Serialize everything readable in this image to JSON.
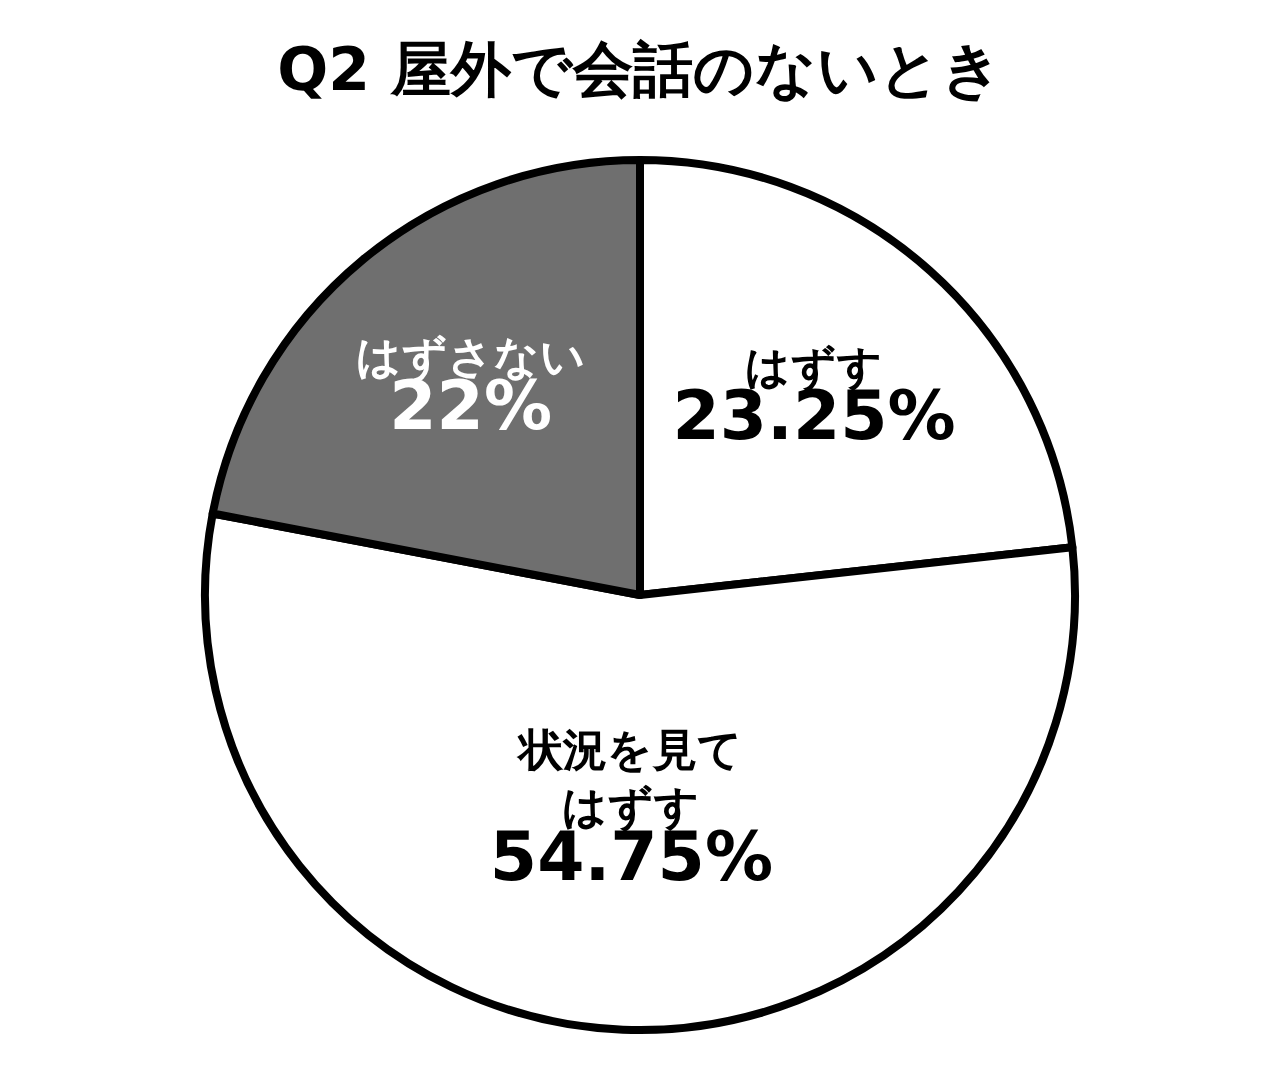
{
  "chart_data": {
    "type": "pie",
    "title": "Q2 屋外で会話のないとき",
    "categories": [
      "はずす",
      "状況を見てはずす",
      "はずさない"
    ],
    "values": [
      23.25,
      54.75,
      22
    ],
    "colors": [
      "#ffffff",
      "#ffffff",
      "#6f6f6f"
    ],
    "value_labels": [
      "23.25%",
      "54.75%",
      "22%"
    ]
  }
}
